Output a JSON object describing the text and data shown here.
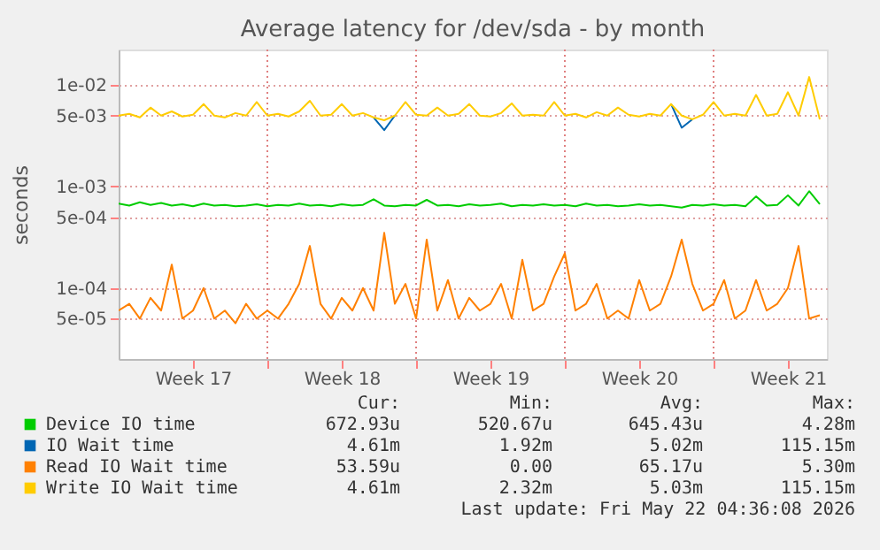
{
  "chart_data": {
    "type": "line",
    "title": "Average latency for /dev/sda - by month",
    "ylabel": "seconds",
    "log": "y",
    "grid": true,
    "legend": "bottom",
    "x": [
      "2026-04-20T00:00",
      "2026-04-20T12:00",
      "2026-04-21T00:00",
      "2026-04-21T12:00",
      "2026-04-22T00:00",
      "2026-04-22T12:00",
      "2026-04-23T00:00",
      "2026-04-23T12:00",
      "2026-04-24T00:00",
      "2026-04-24T12:00",
      "2026-04-25T00:00",
      "2026-04-25T12:00",
      "2026-04-26T00:00",
      "2026-04-26T12:00",
      "2026-04-27T00:00",
      "2026-04-27T12:00",
      "2026-04-28T00:00",
      "2026-04-28T12:00",
      "2026-04-29T00:00",
      "2026-04-29T12:00",
      "2026-04-30T00:00",
      "2026-04-30T12:00",
      "2026-05-01T00:00",
      "2026-05-01T12:00",
      "2026-05-02T00:00",
      "2026-05-02T12:00",
      "2026-05-03T00:00",
      "2026-05-03T12:00",
      "2026-05-04T00:00",
      "2026-05-04T12:00",
      "2026-05-05T00:00",
      "2026-05-05T12:00",
      "2026-05-06T00:00",
      "2026-05-06T12:00",
      "2026-05-07T00:00",
      "2026-05-07T12:00",
      "2026-05-08T00:00",
      "2026-05-08T12:00",
      "2026-05-09T00:00",
      "2026-05-09T12:00",
      "2026-05-10T00:00",
      "2026-05-10T12:00",
      "2026-05-11T00:00",
      "2026-05-11T12:00",
      "2026-05-12T00:00",
      "2026-05-12T12:00",
      "2026-05-13T00:00",
      "2026-05-13T12:00",
      "2026-05-14T00:00",
      "2026-05-14T12:00",
      "2026-05-15T00:00",
      "2026-05-15T12:00",
      "2026-05-16T00:00",
      "2026-05-16T12:00",
      "2026-05-17T00:00",
      "2026-05-17T12:00",
      "2026-05-18T00:00",
      "2026-05-18T12:00",
      "2026-05-19T00:00",
      "2026-05-19T12:00",
      "2026-05-20T00:00",
      "2026-05-20T12:00",
      "2026-05-21T00:00",
      "2026-05-21T12:00",
      "2026-05-22T00:00",
      "2026-05-22T12:00",
      "2026-05-23T00:00"
    ],
    "xlim": [
      "2026-04-20T00:00",
      "2026-05-23T08:00"
    ],
    "xticks": [
      {
        "value": "2026-04-23T12:00",
        "label": "Week 17"
      },
      {
        "value": "2026-04-30T12:00",
        "label": "Week 18"
      },
      {
        "value": "2026-05-07T12:00",
        "label": "Week 19"
      },
      {
        "value": "2026-05-14T12:00",
        "label": "Week 20"
      },
      {
        "value": "2026-05-21T12:00",
        "label": "Week 21"
      },
      {
        "value": "2026-04-27T00:00",
        "label": null
      },
      {
        "value": "2026-05-04T00:00",
        "label": null
      },
      {
        "value": "2026-05-11T00:00",
        "label": null
      },
      {
        "value": "2026-05-18T00:00",
        "label": null
      }
    ],
    "ylim": [
      2e-05,
      0.0224
    ],
    "yticks": [
      {
        "value": 5e-05,
        "label": "5e-05"
      },
      {
        "value": 0.0001,
        "label": "1e-04"
      },
      {
        "value": 0.0005,
        "label": "5e-04"
      },
      {
        "value": 0.001,
        "label": "1e-03"
      },
      {
        "value": 0.005,
        "label": "5e-03"
      },
      {
        "value": 0.01,
        "label": "1e-02"
      }
    ],
    "series": [
      {
        "name": "Device IO time",
        "color": "#00cc00",
        "values": [
          0.00068,
          0.00065,
          0.0007,
          0.00066,
          0.00069,
          0.00065,
          0.00067,
          0.00064,
          0.00068,
          0.00065,
          0.00066,
          0.00064,
          0.00065,
          0.00067,
          0.00064,
          0.00066,
          0.00065,
          0.00068,
          0.00065,
          0.00066,
          0.00064,
          0.00067,
          0.00065,
          0.00066,
          0.00075,
          0.00065,
          0.00064,
          0.00066,
          0.00065,
          0.00074,
          0.00065,
          0.00066,
          0.00064,
          0.00067,
          0.00065,
          0.00066,
          0.00068,
          0.00064,
          0.00066,
          0.00065,
          0.00067,
          0.00065,
          0.00066,
          0.00064,
          0.00068,
          0.00065,
          0.00066,
          0.00064,
          0.00065,
          0.00067,
          0.00065,
          0.00066,
          0.00064,
          0.00062,
          0.00066,
          0.00065,
          0.00067,
          0.00065,
          0.00066,
          0.00064,
          0.0008,
          0.00065,
          0.00066,
          0.00082,
          0.00065,
          0.0009,
          0.00067
        ]
      },
      {
        "name": "IO Wait time",
        "color": "#0066b3",
        "values": [
          null,
          null,
          null,
          null,
          null,
          null,
          null,
          null,
          null,
          null,
          null,
          null,
          null,
          null,
          null,
          null,
          null,
          null,
          null,
          null,
          null,
          null,
          null,
          null,
          0.0048,
          0.0036,
          0.005,
          null,
          null,
          null,
          null,
          null,
          null,
          null,
          null,
          null,
          null,
          null,
          null,
          null,
          null,
          null,
          null,
          null,
          null,
          null,
          null,
          null,
          null,
          null,
          null,
          null,
          0.0065,
          0.0038,
          0.0046,
          null,
          null,
          null,
          null,
          null,
          null,
          null,
          null,
          null,
          null,
          null,
          null
        ]
      },
      {
        "name": "Read IO Wait time",
        "color": "#ff8000",
        "values": [
          6e-05,
          7e-05,
          5e-05,
          8e-05,
          6e-05,
          0.00017,
          5e-05,
          6e-05,
          0.0001,
          5e-05,
          6e-05,
          4.5e-05,
          7e-05,
          5e-05,
          6e-05,
          5e-05,
          7e-05,
          0.00011,
          0.00026,
          7e-05,
          5e-05,
          8e-05,
          6e-05,
          0.0001,
          6e-05,
          0.00035,
          7e-05,
          0.00011,
          5e-05,
          0.0003,
          6e-05,
          0.00012,
          5e-05,
          8e-05,
          6e-05,
          7e-05,
          0.00011,
          5e-05,
          0.00019,
          6e-05,
          7e-05,
          0.00013,
          0.00022,
          6e-05,
          7e-05,
          0.00011,
          5e-05,
          6e-05,
          5e-05,
          0.00012,
          6e-05,
          7e-05,
          0.00013,
          0.0003,
          0.00011,
          6e-05,
          7e-05,
          0.00012,
          5e-05,
          6e-05,
          0.00012,
          6e-05,
          7e-05,
          0.0001,
          0.00026,
          5e-05,
          5.4e-05
        ]
      },
      {
        "name": "Write IO Wait time",
        "color": "#ffcc00",
        "values": [
          0.005,
          0.0052,
          0.0048,
          0.006,
          0.005,
          0.0055,
          0.0049,
          0.0051,
          0.0065,
          0.005,
          0.0048,
          0.0053,
          0.005,
          0.0068,
          0.005,
          0.0052,
          0.0049,
          0.0055,
          0.007,
          0.005,
          0.0051,
          0.0065,
          0.005,
          0.0053,
          0.0048,
          0.0045,
          0.005,
          0.0068,
          0.0051,
          0.005,
          0.006,
          0.005,
          0.0052,
          0.0065,
          0.005,
          0.0049,
          0.0053,
          0.0066,
          0.005,
          0.0051,
          0.005,
          0.0068,
          0.005,
          0.0052,
          0.0048,
          0.0054,
          0.005,
          0.006,
          0.0051,
          0.0049,
          0.0052,
          0.005,
          0.0065,
          0.005,
          0.0046,
          0.0051,
          0.0068,
          0.005,
          0.0052,
          0.005,
          0.008,
          0.005,
          0.0052,
          0.0085,
          0.005,
          0.012,
          0.0046
        ]
      }
    ],
    "annotations": [
      "Cur:",
      "Min:",
      "Avg:",
      "Max:",
      "672.93u",
      "520.67u",
      "645.43u",
      "4.28m",
      "4.61m",
      "1.92m",
      "5.02m",
      "115.15m",
      "53.59u",
      "0.00",
      "65.17u",
      "5.30m",
      "4.61m",
      "2.32m",
      "5.03m",
      "115.15m",
      "Last update: Fri May 22 04:36:08 2026"
    ]
  }
}
